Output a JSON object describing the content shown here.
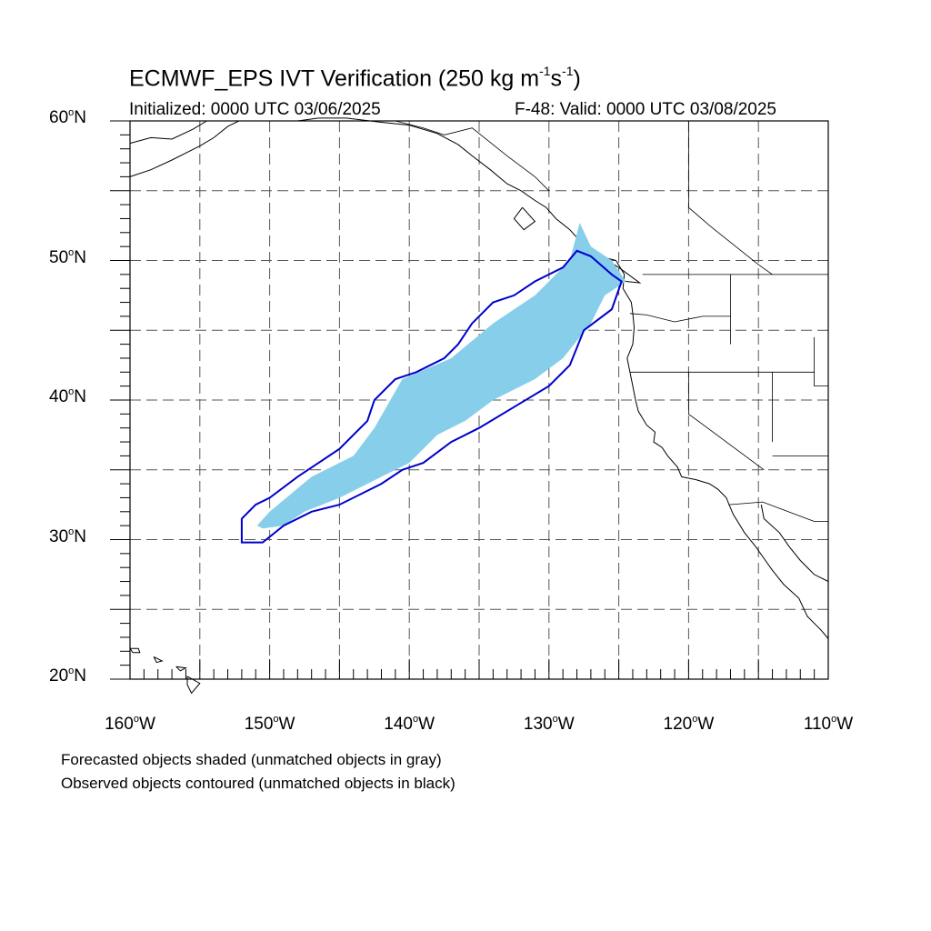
{
  "header": {
    "title": "ECMWF_EPS IVT Verification (250 kg m",
    "title_sup1": "-1",
    "title_mid": "s",
    "title_sup2": "-1",
    "title_end": ")",
    "initialized": "Initialized: 0000 UTC 03/06/2025",
    "valid": "F-48: Valid: 0000 UTC 03/08/2025"
  },
  "axes": {
    "lat_labels": [
      {
        "value": 60,
        "text": "60",
        "suffix": "N"
      },
      {
        "value": 50,
        "text": "50",
        "suffix": "N"
      },
      {
        "value": 40,
        "text": "40",
        "suffix": "N"
      },
      {
        "value": 30,
        "text": "30",
        "suffix": "N"
      },
      {
        "value": 20,
        "text": "20",
        "suffix": "N"
      }
    ],
    "lon_labels": [
      {
        "value": -160,
        "text": "160",
        "suffix": "W"
      },
      {
        "value": -150,
        "text": "150",
        "suffix": "W"
      },
      {
        "value": -140,
        "text": "140",
        "suffix": "W"
      },
      {
        "value": -130,
        "text": "130",
        "suffix": "W"
      },
      {
        "value": -120,
        "text": "120",
        "suffix": "W"
      },
      {
        "value": -110,
        "text": "110",
        "suffix": "W"
      }
    ],
    "lat_range": [
      20,
      60
    ],
    "lon_range": [
      -160,
      -110
    ],
    "grid": "dashed every 5 degrees"
  },
  "notes": {
    "forecast": "Forecasted objects shaded (unmatched objects in gray)",
    "observed": "Observed objects contoured (unmatched objects in black)"
  },
  "colors": {
    "forecast_fill": "#87ceeb",
    "observed_contour": "#0000cd",
    "coastline": "#000000",
    "grid": "#555555"
  },
  "objects": {
    "forecast_shaded": [
      [
        -150.9,
        31.0
      ],
      [
        -150.0,
        32.0
      ],
      [
        -147.0,
        34.5
      ],
      [
        -144.0,
        36.0
      ],
      [
        -142.5,
        38.0
      ],
      [
        -140.5,
        41.5
      ],
      [
        -137.0,
        43.0
      ],
      [
        -134.0,
        45.5
      ],
      [
        -131.0,
        47.5
      ],
      [
        -128.5,
        50.0
      ],
      [
        -127.8,
        52.7
      ],
      [
        -127.0,
        51.0
      ],
      [
        -125.5,
        50.0
      ],
      [
        -124.5,
        48.5
      ],
      [
        -126.0,
        47.5
      ],
      [
        -127.0,
        45.5
      ],
      [
        -129.0,
        43.0
      ],
      [
        -131.0,
        41.5
      ],
      [
        -134.0,
        40.0
      ],
      [
        -136.0,
        38.5
      ],
      [
        -138.0,
        37.5
      ],
      [
        -140.0,
        35.5
      ],
      [
        -142.0,
        34.5
      ],
      [
        -145.0,
        33.0
      ],
      [
        -147.5,
        32.0
      ],
      [
        -149.0,
        31.0
      ],
      [
        -150.5,
        30.8
      ]
    ],
    "observed_contour": [
      [
        -152.0,
        29.8
      ],
      [
        -150.5,
        29.8
      ],
      [
        -149.0,
        31.0
      ],
      [
        -147.0,
        32.0
      ],
      [
        -145.0,
        32.5
      ],
      [
        -142.0,
        34.0
      ],
      [
        -140.5,
        35.0
      ],
      [
        -139.0,
        35.5
      ],
      [
        -137.0,
        37.0
      ],
      [
        -135.0,
        38.0
      ],
      [
        -132.5,
        39.5
      ],
      [
        -130.0,
        41.0
      ],
      [
        -128.5,
        42.5
      ],
      [
        -127.5,
        45.0
      ],
      [
        -125.5,
        46.5
      ],
      [
        -124.8,
        48.5
      ],
      [
        -125.5,
        49.0
      ],
      [
        -127.0,
        50.3
      ],
      [
        -128.0,
        50.7
      ],
      [
        -129.0,
        49.5
      ],
      [
        -131.0,
        48.5
      ],
      [
        -132.5,
        47.5
      ],
      [
        -134.0,
        47.0
      ],
      [
        -135.5,
        45.5
      ],
      [
        -136.5,
        44.0
      ],
      [
        -137.5,
        43.0
      ],
      [
        -139.5,
        42.0
      ],
      [
        -141.0,
        41.5
      ],
      [
        -142.5,
        40.0
      ],
      [
        -143.0,
        38.5
      ],
      [
        -145.0,
        36.5
      ],
      [
        -146.5,
        35.5
      ],
      [
        -148.0,
        34.5
      ],
      [
        -150.0,
        33.0
      ],
      [
        -151.0,
        32.5
      ],
      [
        -152.0,
        31.5
      ],
      [
        -152.0,
        29.8
      ]
    ]
  },
  "geography": {
    "coastlines": [
      [
        [
          -125.2,
          50.0
        ],
        [
          -124.6,
          49.0
        ],
        [
          -124.7,
          48.0
        ],
        [
          -124.1,
          47.0
        ],
        [
          -124.0,
          46.2
        ],
        [
          -123.9,
          45.2
        ],
        [
          -124.0,
          44.0
        ],
        [
          -124.4,
          43.0
        ],
        [
          -124.2,
          42.0
        ],
        [
          -124.0,
          41.0
        ],
        [
          -123.8,
          40.0
        ],
        [
          -123.6,
          39.2
        ],
        [
          -123.0,
          38.2
        ],
        [
          -122.4,
          37.7
        ],
        [
          -122.5,
          37.0
        ],
        [
          -121.9,
          36.6
        ],
        [
          -121.5,
          36.0
        ],
        [
          -120.8,
          35.2
        ],
        [
          -120.5,
          34.5
        ],
        [
          -119.5,
          34.3
        ],
        [
          -118.5,
          34.0
        ],
        [
          -117.9,
          33.6
        ],
        [
          -117.3,
          33.0
        ],
        [
          -117.1,
          32.5
        ],
        [
          -116.8,
          31.8
        ],
        [
          -116.0,
          30.5
        ],
        [
          -115.2,
          29.5
        ],
        [
          -114.5,
          28.5
        ],
        [
          -114.0,
          27.8
        ],
        [
          -113.2,
          26.8
        ],
        [
          -112.1,
          25.8
        ],
        [
          -111.5,
          24.5
        ],
        [
          -110.5,
          23.5
        ],
        [
          -110.0,
          22.9
        ]
      ],
      [
        [
          -114.8,
          32.5
        ],
        [
          -114.6,
          31.5
        ],
        [
          -113.5,
          30.5
        ],
        [
          -112.8,
          29.5
        ],
        [
          -112.0,
          28.5
        ],
        [
          -111.0,
          27.5
        ],
        [
          -110.0,
          27.0
        ]
      ],
      [
        [
          -160.0,
          58.4
        ],
        [
          -158.5,
          58.8
        ],
        [
          -157.0,
          58.7
        ],
        [
          -155.5,
          59.4
        ],
        [
          -154.5,
          60.0
        ]
      ],
      [
        [
          -160.0,
          56.0
        ],
        [
          -158.5,
          56.5
        ],
        [
          -157.0,
          57.2
        ],
        [
          -156.0,
          57.7
        ],
        [
          -155.0,
          58.2
        ],
        [
          -154.0,
          58.8
        ],
        [
          -153.0,
          59.6
        ],
        [
          -152.2,
          60.0
        ]
      ],
      [
        [
          -148.0,
          60.0
        ],
        [
          -146.5,
          60.2
        ],
        [
          -144.5,
          60.2
        ],
        [
          -142.0,
          59.9
        ],
        [
          -140.0,
          59.7
        ],
        [
          -138.0,
          59.1
        ],
        [
          -136.5,
          58.3
        ],
        [
          -135.5,
          57.5
        ],
        [
          -134.2,
          56.5
        ],
        [
          -133.0,
          55.5
        ],
        [
          -132.0,
          55.0
        ],
        [
          -131.0,
          54.3
        ],
        [
          -130.2,
          53.8
        ],
        [
          -129.5,
          53.0
        ],
        [
          -128.5,
          52.2
        ],
        [
          -127.7,
          51.3
        ],
        [
          -127.0,
          50.8
        ],
        [
          -126.0,
          50.2
        ],
        [
          -125.2,
          50.0
        ]
      ],
      [
        [
          -131.9,
          53.8
        ],
        [
          -132.5,
          53.0
        ],
        [
          -131.8,
          52.2
        ],
        [
          -131.0,
          52.8
        ],
        [
          -131.9,
          53.8
        ]
      ],
      [
        [
          -128.2,
          50.8
        ],
        [
          -126.5,
          50.4
        ],
        [
          -125.0,
          49.5
        ],
        [
          -123.5,
          48.4
        ],
        [
          -124.5,
          48.5
        ],
        [
          -125.6,
          49.0
        ],
        [
          -127.0,
          50.0
        ],
        [
          -128.2,
          50.8
        ]
      ],
      [
        [
          -160.0,
          22.2
        ],
        [
          -159.4,
          22.2
        ],
        [
          -159.3,
          21.9
        ],
        [
          -159.8,
          21.9
        ],
        [
          -160.0,
          22.2
        ]
      ],
      [
        [
          -158.3,
          21.6
        ],
        [
          -157.7,
          21.3
        ],
        [
          -158.1,
          21.2
        ],
        [
          -158.3,
          21.6
        ]
      ],
      [
        [
          -156.7,
          20.9
        ],
        [
          -156.0,
          20.8
        ],
        [
          -156.4,
          20.6
        ],
        [
          -156.7,
          20.9
        ]
      ],
      [
        [
          -155.9,
          20.2
        ],
        [
          -155.0,
          19.7
        ],
        [
          -155.6,
          19.0
        ],
        [
          -155.9,
          19.6
        ],
        [
          -155.9,
          20.2
        ]
      ]
    ],
    "borders": [
      [
        [
          -123.3,
          49.0
        ],
        [
          -110.0,
          49.0
        ]
      ],
      [
        [
          -124.2,
          46.2
        ],
        [
          -123.0,
          46.1
        ],
        [
          -121.0,
          45.6
        ],
        [
          -119.0,
          46.0
        ],
        [
          -117.0,
          46.0
        ]
      ],
      [
        [
          -117.0,
          49.0
        ],
        [
          -117.0,
          44.0
        ]
      ],
      [
        [
          -124.2,
          42.0
        ],
        [
          -111.0,
          42.0
        ]
      ],
      [
        [
          -120.0,
          42.0
        ],
        [
          -120.0,
          39.0
        ],
        [
          -114.6,
          35.0
        ]
      ],
      [
        [
          -114.0,
          42.0
        ],
        [
          -114.0,
          37.0
        ]
      ],
      [
        [
          -117.1,
          32.5
        ],
        [
          -114.7,
          32.7
        ],
        [
          -111.0,
          31.3
        ],
        [
          -110.0,
          31.3
        ]
      ],
      [
        [
          -111.0,
          44.5
        ],
        [
          -111.0,
          41.0
        ],
        [
          -110.0,
          41.0
        ]
      ],
      [
        [
          -114.0,
          36.0
        ],
        [
          -110.0,
          36.0
        ]
      ],
      [
        [
          -141.0,
          60.0
        ],
        [
          -139.0,
          59.5
        ],
        [
          -137.5,
          59.0
        ],
        [
          -135.5,
          59.5
        ],
        [
          -133.0,
          57.5
        ],
        [
          -131.0,
          56.0
        ],
        [
          -130.0,
          55.0
        ]
      ],
      [
        [
          -120.0,
          60.0
        ],
        [
          -120.0,
          53.8
        ],
        [
          -118.5,
          52.5
        ],
        [
          -116.5,
          50.9
        ],
        [
          -115.0,
          49.7
        ],
        [
          -114.0,
          49.0
        ]
      ]
    ]
  }
}
